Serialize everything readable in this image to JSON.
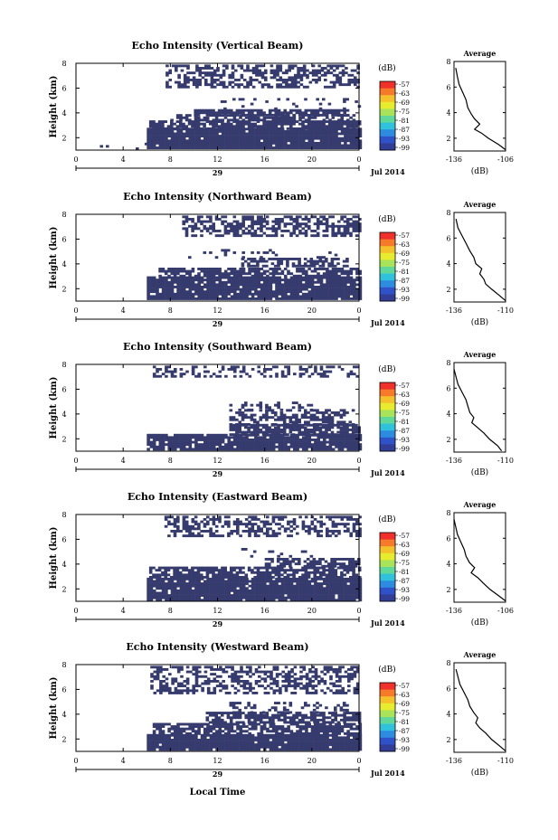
{
  "figure": {
    "footer_xlabel": "Local Time",
    "date_label": "Jul 2014",
    "day_label": "29",
    "colorbar_unit": "(dB)",
    "colorbar_ticks": [
      "-57",
      "-63",
      "-69",
      "-75",
      "-81",
      "-87",
      "-93",
      "-99"
    ],
    "colorbar_colors": [
      "#f0302a",
      "#f7792a",
      "#f4c12c",
      "#e8ec2e",
      "#a8e35a",
      "#5fd89a",
      "#30c2dc",
      "#2e8ce0",
      "#3052c8",
      "#323e96"
    ]
  },
  "chart_data": [
    {
      "type": "heatmap",
      "title": "Echo Intensity (Vertical Beam)",
      "ylabel": "Height (km)",
      "xlim": [
        0,
        24
      ],
      "ylim": [
        1,
        8
      ],
      "xticks": [
        "0",
        "4",
        "8",
        "12",
        "16",
        "20",
        "0"
      ],
      "yticks": [
        "2",
        "4",
        "6",
        "8"
      ],
      "cell_color": "#363b6e",
      "avg_title": "Average",
      "avg_xlabel": "(dB)",
      "avg_xticks": [
        "-136",
        "-106"
      ],
      "avg_xlim": [
        -136,
        -106
      ],
      "avg_yticks": [
        "2",
        "4",
        "6",
        "8"
      ],
      "avg_profile": {
        "x": [
          -106,
          -110,
          -116,
          -120,
          -124,
          -121,
          -124,
          -126,
          -128,
          -129,
          -131,
          -133,
          -134,
          -135
        ],
        "y": [
          1.1,
          1.5,
          2.0,
          2.4,
          2.7,
          3.1,
          3.5,
          3.9,
          4.4,
          5.0,
          5.6,
          6.2,
          6.8,
          7.5
        ]
      },
      "regions": [
        {
          "t0": 6,
          "t1": 24,
          "h0": 1.1,
          "h1": 2.8,
          "d": 0.97
        },
        {
          "t0": 6.2,
          "t1": 24,
          "h0": 2.8,
          "h1": 3.4,
          "d": 0.8
        },
        {
          "t0": 8,
          "t1": 23.5,
          "h0": 3.4,
          "h1": 3.9,
          "d": 0.55
        },
        {
          "t0": 10,
          "t1": 23,
          "h0": 3.9,
          "h1": 4.3,
          "d": 0.75
        },
        {
          "t0": 12,
          "t1": 24,
          "h0": 4.3,
          "h1": 5.2,
          "d": 0.1
        },
        {
          "t0": 7.6,
          "t1": 24,
          "h0": 6.0,
          "h1": 7.9,
          "d": 0.5
        },
        {
          "t0": 0,
          "t1": 6,
          "h0": 1.1,
          "h1": 1.6,
          "d": 0.05
        }
      ]
    },
    {
      "type": "heatmap",
      "title": "Echo Intensity (Northward Beam)",
      "ylabel": "Height (km)",
      "xlim": [
        0,
        24
      ],
      "ylim": [
        1,
        8
      ],
      "xticks": [
        "0",
        "4",
        "8",
        "12",
        "16",
        "20",
        "0"
      ],
      "yticks": [
        "2",
        "4",
        "6",
        "8"
      ],
      "cell_color": "#363b6e",
      "avg_title": "Average",
      "avg_xlabel": "(dB)",
      "avg_xticks": [
        "-136",
        "-110"
      ],
      "avg_xlim": [
        -136,
        -110
      ],
      "avg_yticks": [
        "2",
        "4",
        "6",
        "8"
      ],
      "avg_profile": {
        "x": [
          -110,
          -113,
          -117,
          -120,
          -121,
          -123,
          -122,
          -125,
          -126,
          -128,
          -130,
          -132,
          -134,
          -135
        ],
        "y": [
          1.1,
          1.5,
          2.0,
          2.4,
          2.8,
          3.2,
          3.6,
          4.0,
          4.5,
          5.0,
          5.6,
          6.2,
          6.8,
          7.5
        ]
      },
      "regions": [
        {
          "t0": 6,
          "t1": 24,
          "h0": 1.1,
          "h1": 3.0,
          "d": 0.93
        },
        {
          "t0": 7,
          "t1": 24,
          "h0": 3.0,
          "h1": 3.7,
          "d": 0.7
        },
        {
          "t0": 14,
          "t1": 23,
          "h0": 3.9,
          "h1": 4.5,
          "d": 0.6
        },
        {
          "t0": 9,
          "t1": 22,
          "h0": 4.6,
          "h1": 5.2,
          "d": 0.12
        },
        {
          "t0": 9,
          "t1": 24,
          "h0": 6.2,
          "h1": 7.9,
          "d": 0.55
        }
      ]
    },
    {
      "type": "heatmap",
      "title": "Echo Intensity (Southward Beam)",
      "ylabel": "Height (km)",
      "xlim": [
        0,
        24
      ],
      "ylim": [
        1,
        8
      ],
      "xticks": [
        "0",
        "4",
        "8",
        "12",
        "16",
        "20",
        "0"
      ],
      "yticks": [
        "2",
        "4",
        "6",
        "8"
      ],
      "cell_color": "#363b6e",
      "avg_title": "Average",
      "avg_xlabel": "(dB)",
      "avg_xticks": [
        "-136",
        "-110"
      ],
      "avg_xlim": [
        -136,
        -110
      ],
      "avg_yticks": [
        "2",
        "4",
        "6",
        "8"
      ],
      "avg_profile": {
        "x": [
          -112,
          -114,
          -118,
          -121,
          -124,
          -127,
          -126,
          -128,
          -129,
          -130,
          -132,
          -134,
          -135,
          -136
        ],
        "y": [
          1.1,
          1.5,
          2.0,
          2.5,
          2.9,
          3.3,
          3.7,
          4.1,
          4.6,
          5.1,
          5.7,
          6.3,
          6.9,
          7.5
        ]
      },
      "regions": [
        {
          "t0": 6,
          "t1": 24,
          "h0": 1.2,
          "h1": 2.4,
          "d": 0.9
        },
        {
          "t0": 13,
          "t1": 24,
          "h0": 2.4,
          "h1": 3.2,
          "d": 0.75
        },
        {
          "t0": 13,
          "t1": 23.5,
          "h0": 3.2,
          "h1": 4.4,
          "d": 0.55
        },
        {
          "t0": 13,
          "t1": 20,
          "h0": 4.4,
          "h1": 5.0,
          "d": 0.3
        },
        {
          "t0": 6,
          "t1": 24,
          "h0": 7.0,
          "h1": 7.9,
          "d": 0.35
        }
      ]
    },
    {
      "type": "heatmap",
      "title": "Echo Intensity (Eastward Beam)",
      "ylabel": "Height (km)",
      "xlim": [
        0,
        24
      ],
      "ylim": [
        1,
        8
      ],
      "xticks": [
        "0",
        "4",
        "8",
        "12",
        "16",
        "20",
        "0"
      ],
      "yticks": [
        "2",
        "4",
        "6",
        "8"
      ],
      "cell_color": "#363b6e",
      "avg_title": "Average",
      "avg_xlabel": "(dB)",
      "avg_xticks": [
        "-136",
        "-106"
      ],
      "avg_xlim": [
        -136,
        -106
      ],
      "avg_yticks": [
        "2",
        "4",
        "6",
        "8"
      ],
      "avg_profile": {
        "x": [
          -106,
          -110,
          -115,
          -119,
          -122,
          -126,
          -124,
          -127,
          -129,
          -130,
          -132,
          -134,
          -135,
          -136
        ],
        "y": [
          1.1,
          1.5,
          2.0,
          2.5,
          2.9,
          3.3,
          3.7,
          4.1,
          4.6,
          5.1,
          5.7,
          6.3,
          6.9,
          7.5
        ]
      },
      "regions": [
        {
          "t0": 6,
          "t1": 24,
          "h0": 1.1,
          "h1": 2.9,
          "d": 0.95
        },
        {
          "t0": 6.2,
          "t1": 24,
          "h0": 2.9,
          "h1": 3.8,
          "d": 0.75
        },
        {
          "t0": 16,
          "t1": 24,
          "h0": 3.8,
          "h1": 4.5,
          "d": 0.7
        },
        {
          "t0": 13,
          "t1": 20,
          "h0": 4.6,
          "h1": 5.3,
          "d": 0.12
        },
        {
          "t0": 7.5,
          "t1": 24,
          "h0": 6.2,
          "h1": 7.9,
          "d": 0.5
        }
      ]
    },
    {
      "type": "heatmap",
      "title": "Echo Intensity (Westward Beam)",
      "ylabel": "Height (km)",
      "xlim": [
        0,
        24
      ],
      "ylim": [
        1,
        8
      ],
      "xticks": [
        "0",
        "4",
        "8",
        "12",
        "16",
        "20",
        "0"
      ],
      "yticks": [
        "2",
        "4",
        "6",
        "8"
      ],
      "cell_color": "#363b6e",
      "avg_title": "Average",
      "avg_xlabel": "(dB)",
      "avg_xticks": [
        "-136",
        "-110"
      ],
      "avg_xlim": [
        -136,
        -110
      ],
      "avg_yticks": [
        "2",
        "4",
        "6",
        "8"
      ],
      "avg_profile": {
        "x": [
          -110,
          -113,
          -117,
          -120,
          -123,
          -125,
          -124,
          -126,
          -128,
          -129,
          -131,
          -133,
          -134,
          -135
        ],
        "y": [
          1.1,
          1.5,
          2.0,
          2.5,
          2.9,
          3.3,
          3.7,
          4.1,
          4.6,
          5.1,
          5.7,
          6.3,
          6.9,
          7.5
        ]
      },
      "regions": [
        {
          "t0": 6,
          "t1": 24,
          "h0": 1.1,
          "h1": 2.4,
          "d": 0.95
        },
        {
          "t0": 6.5,
          "t1": 24,
          "h0": 2.4,
          "h1": 3.3,
          "d": 0.7
        },
        {
          "t0": 11,
          "t1": 24,
          "h0": 3.3,
          "h1": 4.2,
          "d": 0.7
        },
        {
          "t0": 13,
          "t1": 23,
          "h0": 4.2,
          "h1": 5.0,
          "d": 0.25
        },
        {
          "t0": 6.3,
          "t1": 24,
          "h0": 5.8,
          "h1": 7.9,
          "d": 0.5
        }
      ]
    }
  ]
}
